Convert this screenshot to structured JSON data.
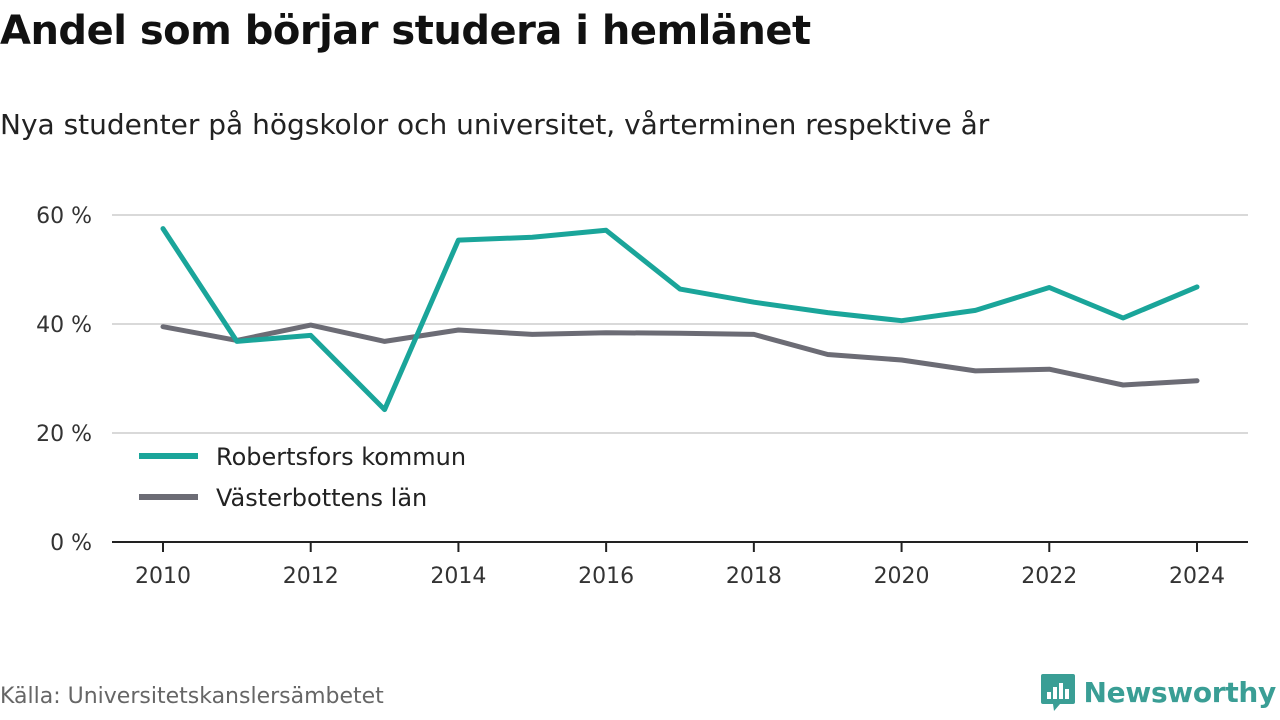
{
  "header": {
    "title": "Andel som börjar studera i hemlänet",
    "subtitle": "Nya studenter på högskolor och universitet, vårterminen respektive år"
  },
  "footer": {
    "source": "Källa: Universitetskanslersämbetet",
    "brand": "Newsworthy",
    "brand_icon": "bar-chart-speech-bubble-icon"
  },
  "colors": {
    "robertsfors": "#1aa59a",
    "vasterbotten": "#6c6c75",
    "grid": "#d9d9d9",
    "axis": "#222222",
    "brand": "#3a9e95"
  },
  "chart_data": {
    "type": "line",
    "title": "Andel som börjar studera i hemlänet",
    "subtitle": "Nya studenter på högskolor och universitet, vårterminen respektive år",
    "xlabel": "",
    "ylabel": "",
    "x": [
      2010,
      2011,
      2012,
      2013,
      2014,
      2015,
      2016,
      2017,
      2018,
      2019,
      2020,
      2021,
      2022,
      2023,
      2024
    ],
    "x_ticks": [
      "2010",
      "2012",
      "2014",
      "2016",
      "2018",
      "2020",
      "2022",
      "2024"
    ],
    "x_tick_values": [
      2010,
      2012,
      2014,
      2016,
      2018,
      2020,
      2022,
      2024
    ],
    "xlim": [
      2009.3,
      2024.7
    ],
    "y_ticks": [
      "0 %",
      "20 %",
      "40 %",
      "60 %"
    ],
    "y_tick_values": [
      0,
      20,
      40,
      60
    ],
    "ylim": [
      0,
      60
    ],
    "grid": true,
    "legend_position": "bottom-left",
    "series": [
      {
        "name": "Robertsfors kommun",
        "color": "#1aa59a",
        "values": [
          57.5,
          36.8,
          37.9,
          24.3,
          55.4,
          55.9,
          57.2,
          46.4,
          44.0,
          42.1,
          40.6,
          42.5,
          46.7,
          41.1,
          46.8
        ]
      },
      {
        "name": "Västerbottens län",
        "color": "#6c6c75",
        "values": [
          39.5,
          37.0,
          39.8,
          36.8,
          38.9,
          38.1,
          38.4,
          38.3,
          38.1,
          34.4,
          33.4,
          31.4,
          31.7,
          28.8,
          29.6
        ]
      }
    ]
  }
}
